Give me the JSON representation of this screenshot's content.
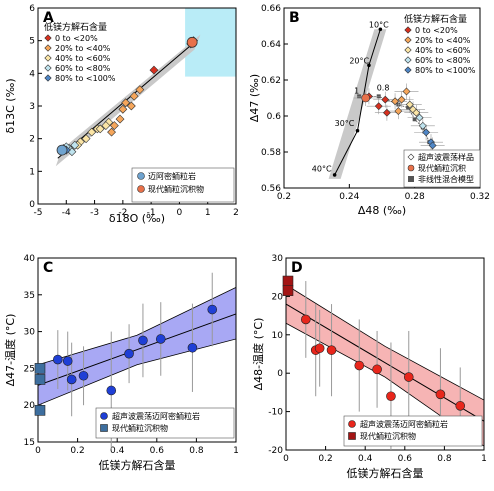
{
  "chart_data": [
    {
      "panel": "A",
      "type": "scatter",
      "xlabel": "δ18O (‰)",
      "ylabel": "δ13C (‰)",
      "xlim": [
        -5,
        2
      ],
      "ylim": [
        0,
        6
      ],
      "xticks": [
        "-5",
        "-4",
        "-3",
        "-2",
        "-1",
        "0",
        "1",
        "2"
      ],
      "yticks": [
        "0",
        "1",
        "2",
        "3",
        "4",
        "5",
        "6"
      ],
      "highlight_box": {
        "x": [
          0.2,
          2
        ],
        "y": [
          3.9,
          6
        ]
      },
      "regression": {
        "x": [
          -4.3,
          0.6
        ],
        "y": [
          1.4,
          5.0
        ]
      },
      "legend_title": "低镁方解石含量",
      "legend": [
        {
          "label": "0 to <20%",
          "color": "#d7301f"
        },
        {
          "label": "20% to <40%",
          "color": "#f5a65b"
        },
        {
          "label": "40% to <60%",
          "color": "#fbe5a6"
        },
        {
          "label": "60% to <80%",
          "color": "#bfe3ee"
        },
        {
          "label": "80% to <100%",
          "color": "#4f86c6"
        }
      ],
      "legend2": [
        {
          "label": "迈阿密鲕粒岩",
          "color": "#6fa3cf"
        },
        {
          "label": "现代鲕粒沉积物",
          "color": "#e8714a"
        }
      ],
      "series": [
        {
          "group": "0 to <20%",
          "color": "#d7301f",
          "points": [
            [
              -0.9,
              4.1
            ],
            [
              0.4,
              4.9
            ],
            [
              0.5,
              5.0
            ]
          ]
        },
        {
          "group": "20% to <40%",
          "color": "#f5a65b",
          "points": [
            [
              -1.4,
              3.5
            ],
            [
              -1.6,
              3.3
            ],
            [
              -1.9,
              3.1
            ],
            [
              -2.0,
              2.9
            ],
            [
              -2.1,
              2.6
            ],
            [
              -2.3,
              2.4
            ],
            [
              -2.4,
              2.2
            ],
            [
              -1.7,
              3.0
            ]
          ]
        },
        {
          "group": "40% to <60%",
          "color": "#fbe5a6",
          "points": [
            [
              -2.5,
              2.5
            ],
            [
              -2.6,
              2.4
            ],
            [
              -2.9,
              2.3
            ],
            [
              -3.1,
              2.2
            ],
            [
              -3.3,
              2.0
            ],
            [
              -3.5,
              1.9
            ],
            [
              -3.6,
              1.8
            ],
            [
              -2.8,
              2.3
            ]
          ]
        },
        {
          "group": "60% to <80%",
          "color": "#bfe3ee",
          "points": [
            [
              -3.7,
              1.8
            ],
            [
              -3.9,
              1.7
            ],
            [
              -3.8,
              1.6
            ],
            [
              -4.0,
              1.75
            ]
          ]
        },
        {
          "group": "80% to <100%",
          "color": "#4f86c6",
          "points": [
            [
              -4.1,
              1.7
            ],
            [
              -4.0,
              1.65
            ]
          ]
        },
        {
          "group": "迈阿密鲕粒岩",
          "color": "#6fa3cf",
          "points": [
            [
              -4.15,
              1.65
            ]
          ]
        },
        {
          "group": "现代鲕粒沉积物",
          "color": "#e8714a",
          "points": [
            [
              0.45,
              4.95
            ]
          ]
        }
      ]
    },
    {
      "panel": "B",
      "type": "scatter",
      "xlabel": "Δ48 (‰)",
      "ylabel": "Δ47 (‰)",
      "xlim": [
        0.2,
        0.32
      ],
      "ylim": [
        0.55,
        0.66
      ],
      "xticks": [
        "0.2",
        "0.24",
        "0.28",
        "0.32"
      ],
      "yticks": [
        "0.56",
        "0.58",
        "0.6",
        "0.62",
        "0.64",
        "0.66"
      ],
      "model_line": {
        "x": [
          0.231,
          0.245,
          0.252,
          0.259
        ],
        "y": [
          0.558,
          0.585,
          0.625,
          0.647
        ]
      },
      "model_labels": [
        {
          "t": "10°C",
          "x": 0.252,
          "y": 0.648
        },
        {
          "t": "20°C",
          "x": 0.24,
          "y": 0.626
        },
        {
          "t": "30°C",
          "x": 0.231,
          "y": 0.588
        },
        {
          "t": "40°C",
          "x": 0.217,
          "y": 0.56
        }
      ],
      "mixing_labels": [
        "1",
        "0.8"
      ],
      "mixing": [
        [
          0.246,
          0.606
        ],
        [
          0.258,
          0.606
        ],
        [
          0.27,
          0.601
        ],
        [
          0.276,
          0.599
        ],
        [
          0.28,
          0.592
        ],
        [
          0.285,
          0.587
        ],
        [
          0.289,
          0.578
        ]
      ],
      "legend_title": "低镁方解石含量",
      "legend": [
        {
          "label": "0 to <20%",
          "color": "#d7301f"
        },
        {
          "label": "20% to <40%",
          "color": "#f5a65b"
        },
        {
          "label": "40% to <60%",
          "color": "#fbe5a6"
        },
        {
          "label": "60% to <80%",
          "color": "#bfe3ee"
        },
        {
          "label": "80% to <100%",
          "color": "#4f86c6"
        }
      ],
      "legend2": [
        {
          "label": "超声波震荡样品",
          "color": "#ffffff"
        },
        {
          "label": "现代鲕粒沉积",
          "color": "#e8714a"
        },
        {
          "label": "非线性混合模型",
          "color": "#555555"
        }
      ],
      "points": [
        {
          "x": 0.252,
          "y": 0.606,
          "c": "#d7301f"
        },
        {
          "x": 0.258,
          "y": 0.6,
          "c": "#d7301f"
        },
        {
          "x": 0.262,
          "y": 0.604,
          "c": "#d7301f"
        },
        {
          "x": 0.263,
          "y": 0.596,
          "c": "#d7301f"
        },
        {
          "x": 0.268,
          "y": 0.603,
          "c": "#f5a65b"
        },
        {
          "x": 0.272,
          "y": 0.604,
          "c": "#f5a65b"
        },
        {
          "x": 0.275,
          "y": 0.609,
          "c": "#f5a65b"
        },
        {
          "x": 0.27,
          "y": 0.597,
          "c": "#f5a65b"
        },
        {
          "x": 0.277,
          "y": 0.601,
          "c": "#fbe5a6"
        },
        {
          "x": 0.279,
          "y": 0.598,
          "c": "#fbe5a6"
        },
        {
          "x": 0.281,
          "y": 0.596,
          "c": "#fbe5a6"
        },
        {
          "x": 0.283,
          "y": 0.593,
          "c": "#bfe3ee"
        },
        {
          "x": 0.285,
          "y": 0.588,
          "c": "#bfe3ee"
        },
        {
          "x": 0.287,
          "y": 0.584,
          "c": "#4f86c6"
        },
        {
          "x": 0.29,
          "y": 0.578,
          "c": "#4f86c6"
        },
        {
          "x": 0.291,
          "y": 0.576,
          "c": "#4f86c6"
        },
        {
          "x": 0.25,
          "y": 0.605,
          "c": "#e8714a",
          "shape": "circle"
        }
      ]
    },
    {
      "panel": "C",
      "type": "scatter",
      "xlabel": "低镁方解石含量",
      "ylabel": "Δ47-温度 (°C)",
      "xlim": [
        0,
        1
      ],
      "ylim": [
        15,
        40
      ],
      "xticks": [
        "0",
        "0.2",
        "0.4",
        "0.6",
        "0.8",
        "1"
      ],
      "yticks": [
        "15",
        "20",
        "25",
        "30",
        "35",
        "40"
      ],
      "band_upper": [
        [
          0,
          25.5
        ],
        [
          0.5,
          29.5
        ],
        [
          1,
          36
        ]
      ],
      "band_lower": [
        [
          0,
          20
        ],
        [
          0.5,
          25.5
        ],
        [
          1,
          29
        ]
      ],
      "fit": {
        "x": [
          0,
          1
        ],
        "y": [
          22.7,
          32.4
        ]
      },
      "legend": [
        {
          "label": "超声波震荡迈阿密鲕粒岩",
          "color": "#1f3fd6",
          "shape": "circle"
        },
        {
          "label": "现代鲕粒沉积物",
          "color": "#3d6e9e",
          "shape": "square"
        }
      ],
      "circles": [
        {
          "x": 0.1,
          "y": 26.2,
          "e": 4
        },
        {
          "x": 0.15,
          "y": 26.0,
          "e": 4
        },
        {
          "x": 0.17,
          "y": 23.5,
          "e": 5
        },
        {
          "x": 0.23,
          "y": 24.0,
          "e": 4
        },
        {
          "x": 0.37,
          "y": 22.0,
          "e": 8
        },
        {
          "x": 0.46,
          "y": 27.0,
          "e": 4
        },
        {
          "x": 0.53,
          "y": 28.8,
          "e": 5
        },
        {
          "x": 0.62,
          "y": 29.0,
          "e": 5
        },
        {
          "x": 0.78,
          "y": 27.8,
          "e": 6
        },
        {
          "x": 0.88,
          "y": 33.0,
          "e": 5
        }
      ],
      "squares": [
        {
          "x": 0.01,
          "y": 25.0
        },
        {
          "x": 0.01,
          "y": 23.5
        },
        {
          "x": 0.01,
          "y": 19.3
        }
      ]
    },
    {
      "panel": "D",
      "type": "scatter",
      "xlabel": "低镁方解石含量",
      "ylabel": "Δ48-温度 (°C)",
      "xlim": [
        0,
        1
      ],
      "ylim": [
        -20,
        30
      ],
      "xticks": [
        "0",
        "0.2",
        "0.4",
        "0.6",
        "0.8",
        "1"
      ],
      "yticks": [
        "-20",
        "-10",
        "0",
        "10",
        "20",
        "30"
      ],
      "band_upper": [
        [
          0,
          23
        ],
        [
          0.5,
          7
        ],
        [
          1,
          -7
        ]
      ],
      "band_lower": [
        [
          0,
          13
        ],
        [
          0.5,
          -1
        ],
        [
          1,
          -19
        ]
      ],
      "fit": {
        "x": [
          0,
          1
        ],
        "y": [
          18,
          -12.5
        ]
      },
      "legend": [
        {
          "label": "超声波震荡迈阿密鲕粒岩",
          "color": "#e8261c",
          "shape": "circle"
        },
        {
          "label": "现代鲕粒沉积物",
          "color": "#a31515",
          "shape": "square"
        }
      ],
      "circles": [
        {
          "x": 0.1,
          "y": 14,
          "e": 10
        },
        {
          "x": 0.15,
          "y": 6,
          "e": 12
        },
        {
          "x": 0.17,
          "y": 6.5,
          "e": 10
        },
        {
          "x": 0.23,
          "y": 6,
          "e": 12
        },
        {
          "x": 0.37,
          "y": 2,
          "e": 12
        },
        {
          "x": 0.46,
          "y": 1,
          "e": 10
        },
        {
          "x": 0.53,
          "y": -6,
          "e": 14
        },
        {
          "x": 0.62,
          "y": -1,
          "e": 12
        },
        {
          "x": 0.78,
          "y": -5.5,
          "e": 12
        },
        {
          "x": 0.88,
          "y": -8.5,
          "e": 10
        }
      ],
      "squares": [
        {
          "x": 0.01,
          "y": 24
        },
        {
          "x": 0.01,
          "y": 21.5
        }
      ]
    }
  ]
}
